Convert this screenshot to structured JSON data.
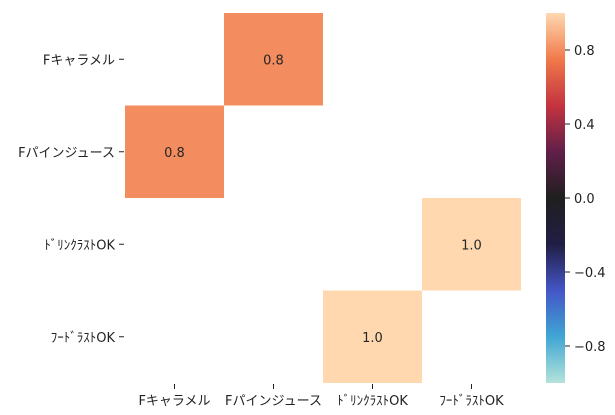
{
  "chart_data": {
    "type": "heatmap",
    "rows": [
      "Fキャラメル",
      "Fパインジュース",
      "ﾄﾞﾘﾝｸﾗｽﾄOK",
      "ﾌｰﾄﾞﾗｽﾄOK"
    ],
    "columns": [
      "Fキャラメル",
      "Fパインジュース",
      "ﾄﾞﾘﾝｸﾗｽﾄOK",
      "ﾌｰﾄﾞﾗｽﾄOK"
    ],
    "values": [
      [
        null,
        0.8,
        null,
        null
      ],
      [
        0.8,
        null,
        null,
        null
      ],
      [
        null,
        null,
        null,
        1.0
      ],
      [
        null,
        null,
        1.0,
        null
      ]
    ],
    "cell_labels": [
      [
        null,
        "0.8",
        null,
        null
      ],
      [
        "0.8",
        null,
        null,
        null
      ],
      [
        null,
        null,
        null,
        "1.0"
      ],
      [
        null,
        null,
        "1.0",
        null
      ]
    ],
    "colorbar": {
      "range": [
        -1,
        1
      ],
      "ticks": [
        -0.8,
        -0.4,
        0.0,
        0.4,
        0.8
      ],
      "tick_labels": [
        "−0.8",
        "−0.4",
        "0.0",
        "0.4",
        "0.8"
      ]
    },
    "colormap": "icefire",
    "colormap_stops": [
      "#b4e3da",
      "#40a6d4",
      "#4456c7",
      "#211e45",
      "#1f1f1f",
      "#611f49",
      "#c4333f",
      "#f0794a",
      "#ffd8b0"
    ]
  }
}
